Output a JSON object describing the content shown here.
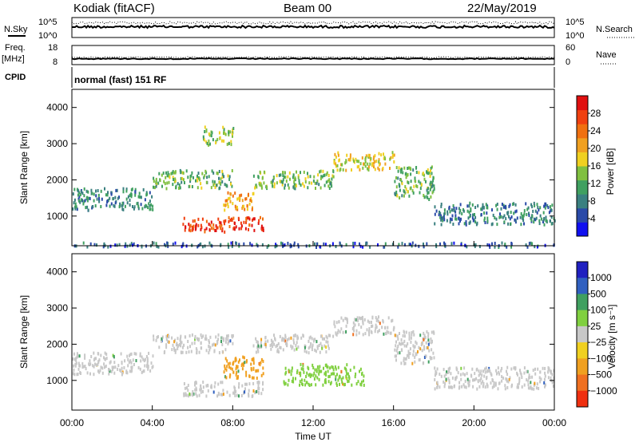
{
  "header": {
    "station": "Kodiak (fitACF)",
    "beam": "Beam 00",
    "date": "22/May/2019"
  },
  "strip_labels": {
    "nsky": "N.Sky",
    "nsearch": "N.Search",
    "freq": "Freq.",
    "mhz": "[MHz]",
    "nave": "Nave",
    "cpid": "CPID",
    "cpid_value": "normal (fast) 151 RF",
    "noise_ticks": [
      "10^5",
      "10^0"
    ],
    "freq_ticks": [
      "18",
      "8"
    ],
    "nave_ticks": [
      "60",
      "0"
    ]
  },
  "axes": {
    "ylabel": "Slant Range [km]",
    "xlabel": "Time UT",
    "x_ticks": [
      "00:00",
      "04:00",
      "08:00",
      "12:00",
      "16:00",
      "20:00",
      "00:00"
    ],
    "y_ticks": [
      "1000",
      "2000",
      "3000",
      "4000"
    ]
  },
  "power_scale": {
    "label": "Power [dB]",
    "ticks": [
      "4",
      "8",
      "12",
      "16",
      "20",
      "24",
      "28"
    ],
    "colors": [
      "#1010f0",
      "#2a4aa8",
      "#3a8080",
      "#40a060",
      "#80c040",
      "#f0d020",
      "#f0a020",
      "#f07010",
      "#f04010",
      "#e01010"
    ]
  },
  "velocity_scale": {
    "label": "Velocity [m s⁻¹]",
    "ticks": [
      "1000",
      "500",
      "100",
      "25",
      "−25",
      "−100",
      "−500",
      "−1000"
    ],
    "colors": [
      "#2020c0",
      "#3060c0",
      "#40a060",
      "#80d040",
      "#c8c8c8",
      "#f0d020",
      "#f0a020",
      "#f07020",
      "#f03010"
    ]
  },
  "chart_data": {
    "type": "heatmap",
    "x_range": [
      "00:00",
      "24:00"
    ],
    "ylim": [
      180,
      4500
    ],
    "panels": [
      {
        "quantity": "Power [dB]",
        "echo_bands": [
          {
            "t_start": 0.0,
            "t_end": 4.0,
            "range_start": 1200,
            "range_end": 1800,
            "value": 8
          },
          {
            "t_start": 4.0,
            "t_end": 8.0,
            "range_start": 1800,
            "range_end": 2300,
            "value": 12
          },
          {
            "t_start": 5.5,
            "t_end": 9.5,
            "range_start": 600,
            "range_end": 1000,
            "value": 26
          },
          {
            "t_start": 7.5,
            "t_end": 9.0,
            "range_start": 1200,
            "range_end": 1700,
            "value": 20
          },
          {
            "t_start": 9.0,
            "t_end": 13.0,
            "range_start": 1800,
            "range_end": 2300,
            "value": 12
          },
          {
            "t_start": 13.0,
            "t_end": 16.0,
            "range_start": 2300,
            "range_end": 2800,
            "value": 16
          },
          {
            "t_start": 16.0,
            "t_end": 18.0,
            "range_start": 1500,
            "range_end": 2400,
            "value": 12
          },
          {
            "t_start": 18.0,
            "t_end": 24.0,
            "range_start": 800,
            "range_end": 1400,
            "value": 8
          },
          {
            "t_start": 6.5,
            "t_end": 8.0,
            "range_start": 3000,
            "range_end": 3500,
            "value": 14
          },
          {
            "t_start": 0.0,
            "t_end": 24.0,
            "range_start": 180,
            "range_end": 300,
            "value": 6
          }
        ]
      },
      {
        "quantity": "Velocity [m s⁻¹]",
        "echo_bands": [
          {
            "t_start": 0.0,
            "t_end": 4.0,
            "range_start": 1200,
            "range_end": 1800,
            "value": 0
          },
          {
            "t_start": 4.0,
            "t_end": 8.0,
            "range_start": 1800,
            "range_end": 2300,
            "value": 0
          },
          {
            "t_start": 5.5,
            "t_end": 9.5,
            "range_start": 600,
            "range_end": 1000,
            "value": 0
          },
          {
            "t_start": 7.5,
            "t_end": 9.5,
            "range_start": 1100,
            "range_end": 1700,
            "value": -300
          },
          {
            "t_start": 9.0,
            "t_end": 13.0,
            "range_start": 1800,
            "range_end": 2300,
            "value": 0
          },
          {
            "t_start": 10.5,
            "t_end": 14.5,
            "range_start": 900,
            "range_end": 1500,
            "value": 80
          },
          {
            "t_start": 13.0,
            "t_end": 16.0,
            "range_start": 2300,
            "range_end": 2800,
            "value": 0
          },
          {
            "t_start": 16.0,
            "t_end": 18.0,
            "range_start": 1500,
            "range_end": 2400,
            "value": 0
          },
          {
            "t_start": 18.0,
            "t_end": 24.0,
            "range_start": 800,
            "range_end": 1400,
            "value": 0
          }
        ]
      }
    ]
  }
}
